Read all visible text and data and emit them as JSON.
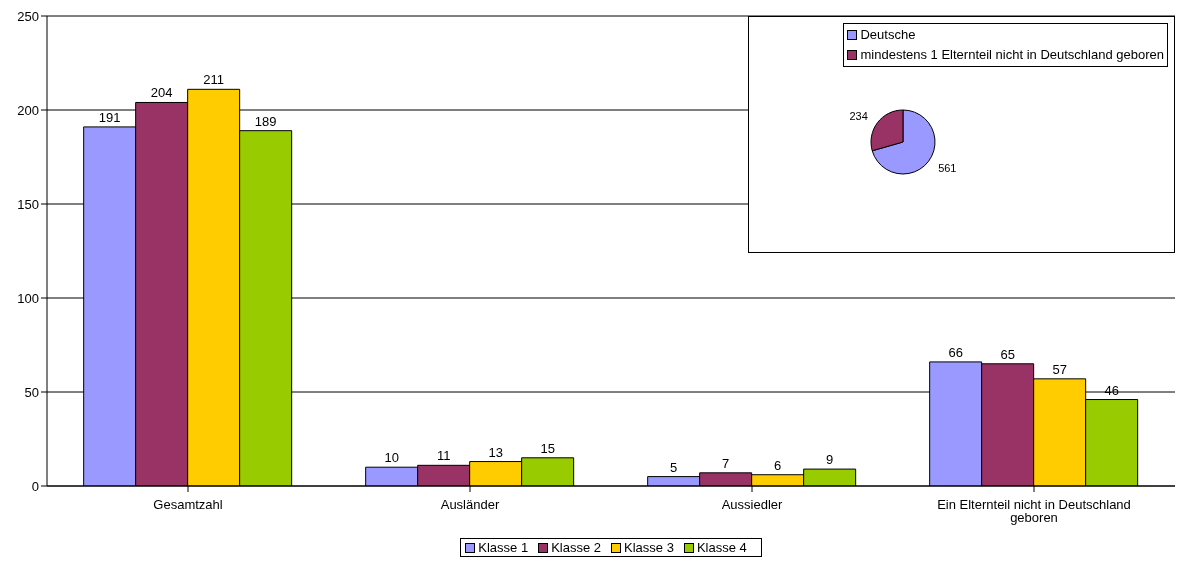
{
  "chart_data": [
    {
      "type": "bar",
      "categories": [
        "Gesamtzahl",
        "Ausländer",
        "Aussiedler",
        "Ein Elternteil nicht in Deutschland geboren"
      ],
      "series": [
        {
          "name": "Klasse 1",
          "color": "#9999ff",
          "values": [
            191,
            10,
            5,
            66
          ]
        },
        {
          "name": "Klasse 2",
          "color": "#993366",
          "values": [
            204,
            11,
            7,
            65
          ]
        },
        {
          "name": "Klasse 3",
          "color": "#ffcc00",
          "values": [
            211,
            13,
            6,
            57
          ]
        },
        {
          "name": "Klasse 4",
          "color": "#99cc00",
          "values": [
            189,
            15,
            9,
            46
          ]
        }
      ],
      "ylim": [
        0,
        250
      ],
      "yticks": [
        0,
        50,
        100,
        150,
        200,
        250
      ],
      "grid": "y",
      "legend": "bottom",
      "data_labels": true
    },
    {
      "type": "pie",
      "categories": [
        "Deutsche",
        "mindestens 1 Elternteil nicht in Deutschland geboren"
      ],
      "values": [
        561,
        234
      ],
      "colors": [
        "#9999ff",
        "#993366"
      ],
      "legend": "top right",
      "data_labels": true
    }
  ]
}
